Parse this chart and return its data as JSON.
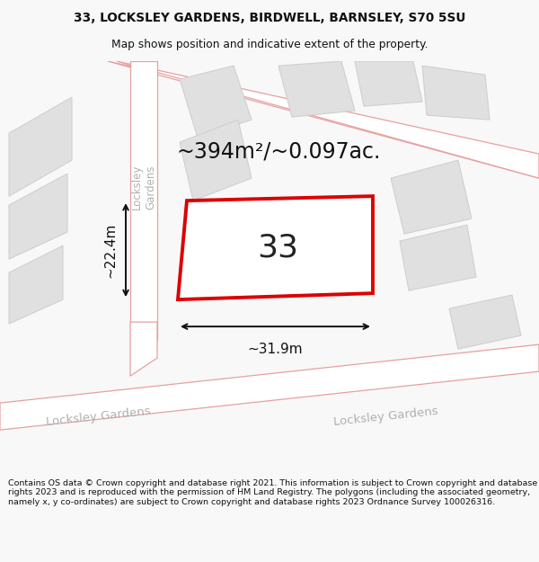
{
  "title_line1": "33, LOCKSLEY GARDENS, BIRDWELL, BARNSLEY, S70 5SU",
  "title_line2": "Map shows position and indicative extent of the property.",
  "footer_text": "Contains OS data © Crown copyright and database right 2021. This information is subject to Crown copyright and database rights 2023 and is reproduced with the permission of HM Land Registry. The polygons (including the associated geometry, namely x, y co-ordinates) are subject to Crown copyright and database rights 2023 Ordnance Survey 100026316.",
  "area_text": "~394m²/~0.097ac.",
  "number_text": "33",
  "dim_width": "~31.9m",
  "dim_height": "~22.4m",
  "map_bg": "#efefef",
  "road_fill": "#ffffff",
  "road_edge": "#e8a0a0",
  "block_fill": "#e0e0e0",
  "block_edge": "#d0d0d0",
  "plot_fill": "#ffffff",
  "plot_edge": "#dd0000",
  "street_color": "#b0b0b0"
}
